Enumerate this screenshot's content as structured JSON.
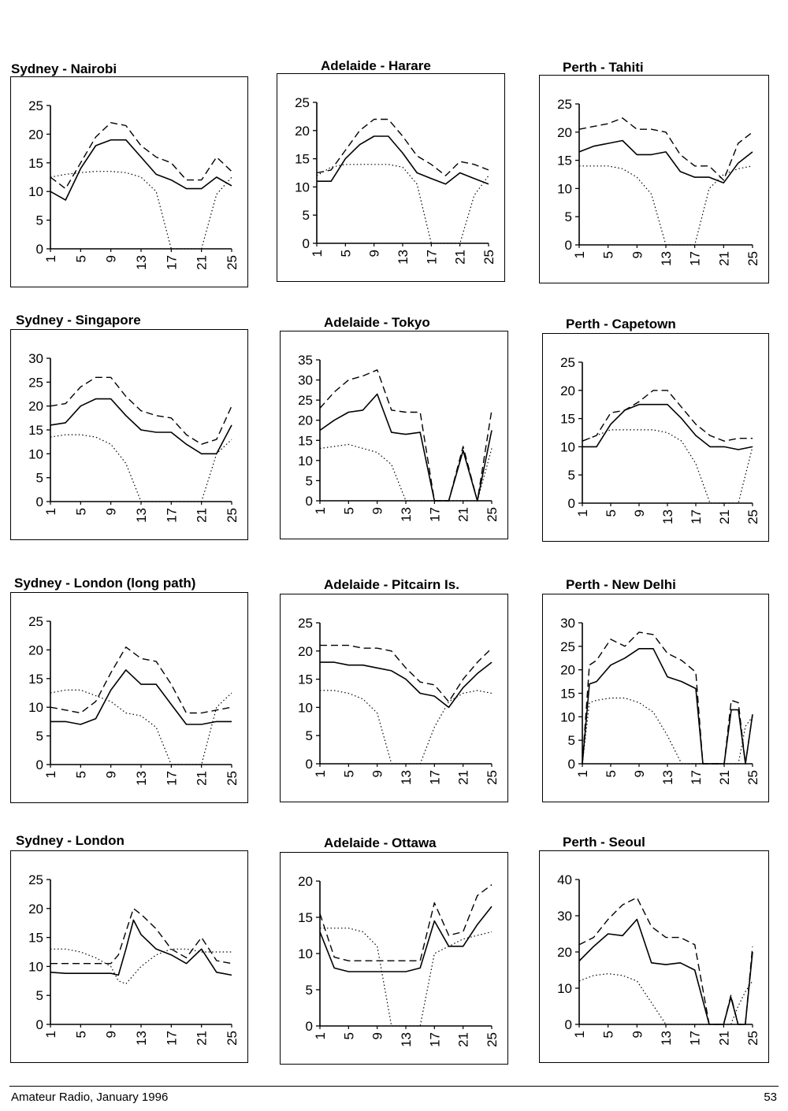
{
  "footer": {
    "publication": "Amateur Radio, January 1996",
    "page_number": "53"
  },
  "styles": {
    "ink": "#000000",
    "paper": "#ffffff"
  },
  "chart_data": [
    {
      "type": "line",
      "title": "Sydney - Nairobi",
      "x": [
        1,
        3,
        5,
        7,
        9,
        11,
        13,
        15,
        17,
        19,
        21,
        23,
        25
      ],
      "xticks": [
        "1",
        "5",
        "9",
        "13",
        "17",
        "21",
        "25"
      ],
      "ylim": [
        0,
        25
      ],
      "yticks": [
        0,
        5,
        10,
        15,
        20,
        25
      ],
      "series": [
        {
          "style": "dashed",
          "values": [
            12.5,
            10.5,
            15,
            19.5,
            22,
            21.5,
            18,
            16,
            15,
            12,
            12,
            16,
            13.5
          ]
        },
        {
          "style": "solid",
          "values": [
            10,
            8.5,
            14,
            18,
            19,
            19,
            16,
            13,
            12,
            10.5,
            10.5,
            12.5,
            11
          ]
        },
        {
          "style": "dotted",
          "values": [
            12.5,
            13,
            13.3,
            13.5,
            13.5,
            13.3,
            12.5,
            10,
            0,
            0,
            0,
            9.5,
            12.5
          ]
        }
      ]
    },
    {
      "type": "line",
      "title": "Adelaide - Harare",
      "x": [
        1,
        3,
        5,
        7,
        9,
        11,
        13,
        15,
        17,
        19,
        21,
        23,
        25
      ],
      "xticks": [
        "1",
        "5",
        "9",
        "13",
        "17",
        "21",
        "25"
      ],
      "ylim": [
        0,
        25
      ],
      "yticks": [
        0,
        5,
        10,
        15,
        20,
        25
      ],
      "series": [
        {
          "style": "dashed",
          "values": [
            12.5,
            13,
            16.5,
            20,
            22,
            22,
            19,
            15.5,
            14,
            12,
            14.5,
            14,
            13
          ]
        },
        {
          "style": "solid",
          "values": [
            11,
            11,
            15,
            17.5,
            19,
            19,
            16,
            12.5,
            11.5,
            10.5,
            12.5,
            11.5,
            10.5
          ]
        },
        {
          "style": "dotted",
          "values": [
            12,
            13.5,
            14,
            14,
            14,
            14,
            13.5,
            10.5,
            0,
            0,
            0,
            8.5,
            12
          ]
        }
      ]
    },
    {
      "type": "line",
      "title": "Perth - Tahiti",
      "x": [
        1,
        3,
        5,
        7,
        9,
        11,
        13,
        15,
        17,
        19,
        21,
        23,
        25
      ],
      "xticks": [
        "1",
        "5",
        "9",
        "13",
        "17",
        "21",
        "25"
      ],
      "ylim": [
        0,
        25
      ],
      "yticks": [
        0,
        5,
        10,
        15,
        20,
        25
      ],
      "series": [
        {
          "style": "dashed",
          "values": [
            20.5,
            21,
            21.5,
            22.5,
            20.5,
            20.5,
            20,
            16,
            14,
            14,
            11.5,
            18,
            20
          ]
        },
        {
          "style": "solid",
          "values": [
            16.5,
            17.5,
            18,
            18.5,
            16,
            16,
            16.5,
            13,
            12,
            12,
            11,
            14.5,
            16.5
          ]
        },
        {
          "style": "dotted",
          "values": [
            14,
            14,
            14,
            13.5,
            12,
            9,
            0,
            0,
            0,
            10,
            12.5,
            13.5,
            14
          ]
        }
      ]
    },
    {
      "type": "line",
      "title": "Sydney - Singapore",
      "x": [
        1,
        3,
        5,
        7,
        9,
        11,
        13,
        15,
        17,
        19,
        21,
        23,
        25
      ],
      "xticks": [
        "1",
        "5",
        "9",
        "13",
        "17",
        "21",
        "25"
      ],
      "ylim": [
        0,
        30
      ],
      "yticks": [
        0,
        5,
        10,
        15,
        20,
        25,
        30
      ],
      "series": [
        {
          "style": "dashed",
          "values": [
            20,
            20.5,
            24,
            26,
            26,
            22,
            19,
            18,
            17.5,
            14,
            12,
            13,
            20
          ]
        },
        {
          "style": "solid",
          "values": [
            16,
            16.5,
            20,
            21.5,
            21.5,
            18,
            15,
            14.5,
            14.5,
            12,
            10,
            10,
            16
          ]
        },
        {
          "style": "dotted",
          "values": [
            13.5,
            14,
            14,
            13.5,
            12,
            8,
            0,
            0,
            0,
            0,
            0,
            10,
            13
          ]
        }
      ]
    },
    {
      "type": "line",
      "title": "Adelaide - Tokyo",
      "x": [
        1,
        3,
        5,
        7,
        9,
        11,
        13,
        15,
        17,
        19,
        21,
        23,
        25
      ],
      "xticks": [
        "1",
        "5",
        "9",
        "13",
        "17",
        "21",
        "25"
      ],
      "ylim": [
        0,
        35
      ],
      "yticks": [
        0,
        5,
        10,
        15,
        20,
        25,
        30,
        35
      ],
      "series": [
        {
          "style": "dashed",
          "values": [
            23,
            27,
            30,
            31,
            32.5,
            22.5,
            22,
            22,
            0,
            0,
            13.5,
            0,
            22.5
          ]
        },
        {
          "style": "solid",
          "values": [
            17.5,
            20,
            22,
            22.5,
            26.5,
            17,
            16.5,
            17,
            0,
            0,
            12.5,
            0,
            17.5
          ]
        },
        {
          "style": "dotted",
          "values": [
            13,
            13.5,
            14,
            13,
            12,
            9,
            0,
            0,
            0,
            0,
            0,
            0,
            13
          ]
        }
      ]
    },
    {
      "type": "line",
      "title": "Perth - Capetown",
      "x": [
        1,
        3,
        5,
        7,
        9,
        11,
        13,
        15,
        17,
        19,
        21,
        23,
        25
      ],
      "xticks": [
        "1",
        "5",
        "9",
        "13",
        "17",
        "21",
        "25"
      ],
      "ylim": [
        0,
        25
      ],
      "yticks": [
        0,
        5,
        10,
        15,
        20,
        25
      ],
      "series": [
        {
          "style": "dashed",
          "values": [
            11,
            12,
            16,
            16.5,
            18,
            20,
            20,
            17,
            14,
            12,
            11,
            11.5,
            11.5
          ]
        },
        {
          "style": "solid",
          "values": [
            10,
            10,
            14,
            16.5,
            17.5,
            17.5,
            17.5,
            15,
            12,
            10,
            10,
            9.5,
            10
          ]
        },
        {
          "style": "dotted",
          "values": [
            11,
            12,
            13,
            13,
            13,
            13,
            12.5,
            11,
            7,
            0,
            0,
            0,
            10
          ]
        }
      ]
    },
    {
      "type": "line",
      "title": "Sydney - London (long path)",
      "x": [
        1,
        3,
        5,
        7,
        9,
        11,
        13,
        15,
        17,
        19,
        21,
        23,
        25
      ],
      "xticks": [
        "1",
        "5",
        "9",
        "13",
        "17",
        "21",
        "25"
      ],
      "ylim": [
        0,
        25
      ],
      "yticks": [
        0,
        5,
        10,
        15,
        20,
        25
      ],
      "series": [
        {
          "style": "dashed",
          "values": [
            10,
            9.5,
            9,
            11,
            16,
            20.5,
            18.5,
            18,
            14,
            9,
            9,
            9.5,
            10
          ]
        },
        {
          "style": "solid",
          "values": [
            7.5,
            7.5,
            7,
            8,
            13,
            16.5,
            14,
            14,
            10.5,
            7,
            7,
            7.5,
            7.5
          ]
        },
        {
          "style": "dotted",
          "values": [
            12.5,
            13,
            13,
            12,
            11,
            9,
            8.5,
            6.5,
            0,
            0,
            0,
            10,
            12.5
          ]
        }
      ]
    },
    {
      "type": "line",
      "title": "Adelaide - Pitcairn Is.",
      "x": [
        1,
        3,
        5,
        7,
        9,
        11,
        13,
        15,
        17,
        19,
        21,
        23,
        25
      ],
      "xticks": [
        "1",
        "5",
        "9",
        "13",
        "17",
        "21",
        "25"
      ],
      "ylim": [
        0,
        25
      ],
      "yticks": [
        0,
        5,
        10,
        15,
        20,
        25
      ],
      "series": [
        {
          "style": "dashed",
          "values": [
            21,
            21,
            21,
            20.5,
            20.5,
            20,
            17,
            14.5,
            14,
            11,
            15,
            18,
            20.5
          ]
        },
        {
          "style": "solid",
          "values": [
            18,
            18,
            17.5,
            17.5,
            17,
            16.5,
            15,
            12.5,
            12,
            10,
            13.5,
            16,
            18
          ]
        },
        {
          "style": "dotted",
          "values": [
            13,
            13,
            12.5,
            11.5,
            9,
            0,
            0,
            0,
            6.5,
            11,
            12.5,
            13,
            12.5
          ]
        }
      ]
    },
    {
      "type": "line",
      "title": "Perth - New Delhi",
      "x": [
        1,
        2,
        3,
        5,
        7,
        9,
        11,
        13,
        15,
        17,
        18,
        19,
        20,
        21,
        22,
        23,
        24,
        25
      ],
      "xticks": [
        "1",
        "5",
        "9",
        "13",
        "17",
        "21",
        "25"
      ],
      "ylim": [
        0,
        30
      ],
      "yticks": [
        0,
        5,
        10,
        15,
        20,
        25,
        30
      ],
      "series": [
        {
          "style": "dashed",
          "values": [
            0,
            21,
            22,
            26.5,
            25,
            28,
            27.5,
            23.5,
            22,
            19.5,
            0,
            0,
            0,
            0,
            13.5,
            13,
            0,
            10.5
          ]
        },
        {
          "style": "solid",
          "values": [
            0,
            17,
            17.5,
            21,
            22.5,
            24.5,
            24.5,
            18.5,
            17.5,
            16,
            0,
            0,
            0,
            0,
            11.5,
            11.5,
            0,
            10.5
          ]
        },
        {
          "style": "dotted",
          "values": [
            0,
            13,
            13.5,
            14,
            14,
            13,
            11,
            6,
            0,
            0,
            0,
            0,
            0,
            0,
            0,
            0,
            8,
            10
          ]
        }
      ]
    },
    {
      "type": "line",
      "title": "Sydney - London",
      "x": [
        1,
        3,
        5,
        7,
        9,
        10,
        11,
        12,
        13,
        15,
        17,
        19,
        21,
        23,
        25
      ],
      "xticks": [
        "1",
        "5",
        "9",
        "13",
        "17",
        "21",
        "25"
      ],
      "ylim": [
        0,
        25
      ],
      "yticks": [
        0,
        5,
        10,
        15,
        20,
        25
      ],
      "series": [
        {
          "style": "dashed",
          "values": [
            10.5,
            10.5,
            10.5,
            10.5,
            10.5,
            12,
            16,
            20,
            19,
            16.5,
            13,
            11.5,
            15,
            11,
            10.5
          ]
        },
        {
          "style": "solid",
          "values": [
            9,
            8.8,
            8.8,
            8.8,
            8.8,
            8.5,
            13,
            18,
            15.5,
            13,
            12,
            10.5,
            13,
            9,
            8.5
          ]
        },
        {
          "style": "dotted",
          "values": [
            13,
            13,
            12.5,
            11.5,
            10,
            7.5,
            7,
            8.5,
            10,
            12,
            13,
            13,
            12.5,
            12.5,
            12.5
          ]
        }
      ]
    },
    {
      "type": "line",
      "title": "Adelaide - Ottawa",
      "x": [
        1,
        3,
        5,
        7,
        9,
        11,
        13,
        15,
        17,
        19,
        21,
        23,
        25
      ],
      "xticks": [
        "1",
        "5",
        "9",
        "13",
        "17",
        "21",
        "25"
      ],
      "ylim": [
        0,
        20
      ],
      "yticks": [
        0,
        5,
        10,
        15,
        20
      ],
      "series": [
        {
          "style": "dashed",
          "values": [
            15.5,
            9.5,
            9,
            9,
            9,
            9,
            9,
            9,
            17,
            12.5,
            13,
            18,
            19.5
          ]
        },
        {
          "style": "solid",
          "values": [
            13,
            8,
            7.5,
            7.5,
            7.5,
            7.5,
            7.5,
            8,
            14.5,
            11,
            11,
            14,
            16.5
          ]
        },
        {
          "style": "dotted",
          "values": [
            13.5,
            13.5,
            13.5,
            13,
            11,
            0,
            0,
            0,
            10,
            11,
            12,
            12.5,
            13
          ]
        }
      ]
    },
    {
      "type": "line",
      "title": "Perth - Seoul",
      "x": [
        1,
        3,
        5,
        7,
        9,
        11,
        13,
        15,
        17,
        19,
        21,
        22,
        23,
        24,
        25
      ],
      "xticks": [
        "1",
        "5",
        "9",
        "13",
        "17",
        "21",
        "25"
      ],
      "ylim": [
        0,
        40
      ],
      "yticks": [
        0,
        10,
        20,
        30,
        40
      ],
      "series": [
        {
          "style": "dashed",
          "values": [
            22,
            24,
            29,
            33,
            35,
            27,
            24,
            24,
            22,
            0,
            0,
            8,
            0,
            0,
            21.5
          ]
        },
        {
          "style": "solid",
          "values": [
            17.5,
            21.5,
            25,
            24.5,
            29,
            17,
            16.5,
            17,
            15,
            0,
            0,
            7.5,
            0,
            0,
            20
          ]
        },
        {
          "style": "dotted",
          "values": [
            12,
            13.5,
            14,
            13.5,
            12,
            6,
            0,
            0,
            0,
            0,
            0,
            0,
            5,
            9,
            12
          ]
        }
      ]
    }
  ]
}
